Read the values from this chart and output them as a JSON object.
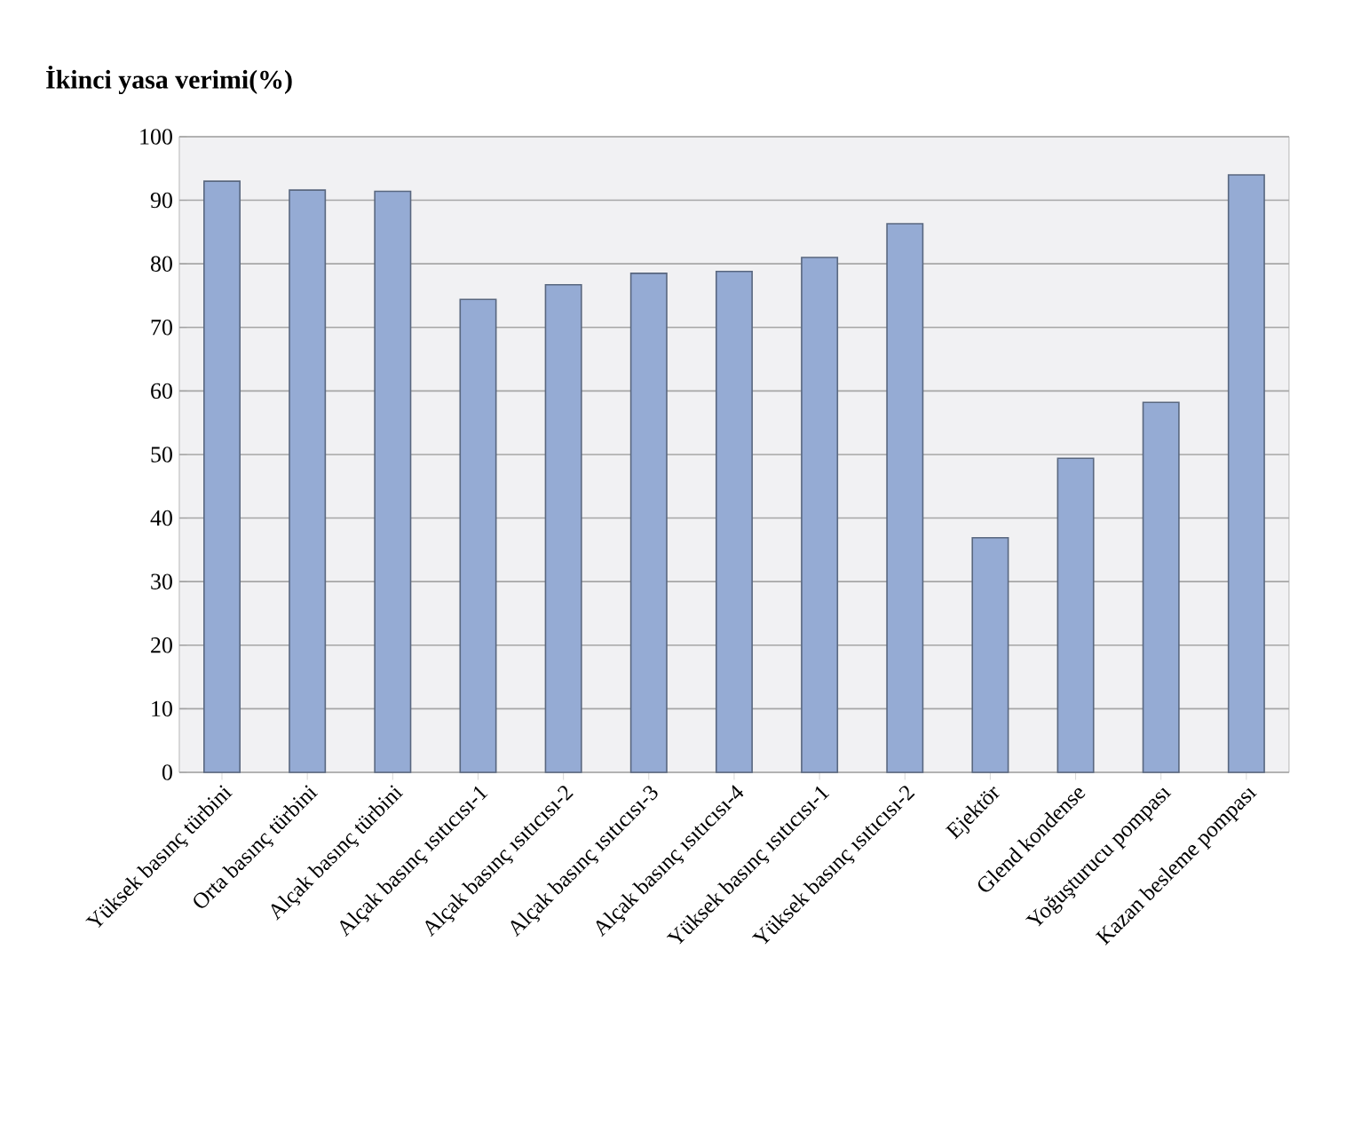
{
  "chart_data": {
    "type": "bar",
    "title": "İkinci yasa verimi(%)",
    "categories": [
      "Yüksek basınç türbini",
      "Orta basınç türbini",
      "Alçak basınç türbini",
      "Alçak basınç ısıtıcısı-1",
      "Alçak basınç ısıtıcısı-2",
      "Alçak basınç ısıtıcısı-3",
      "Alçak basınç ısıtıcısı-4",
      "Yüksek basınç ısıtıcısı-1",
      "Yüksek basınç ısıtıcısı-2",
      "Ejektör",
      "Glend kondense",
      "Yoğuşturucu pompası",
      "Kazan besleme pompası"
    ],
    "values": [
      93,
      91.6,
      91.4,
      74.4,
      76.7,
      78.5,
      78.8,
      81,
      86.3,
      36.9,
      49.4,
      58.2,
      94
    ],
    "color": "#95abd4",
    "ylim": [
      0,
      100
    ],
    "yticks": [
      0,
      10,
      20,
      30,
      40,
      50,
      60,
      70,
      80,
      90,
      100
    ],
    "grid": "y"
  }
}
